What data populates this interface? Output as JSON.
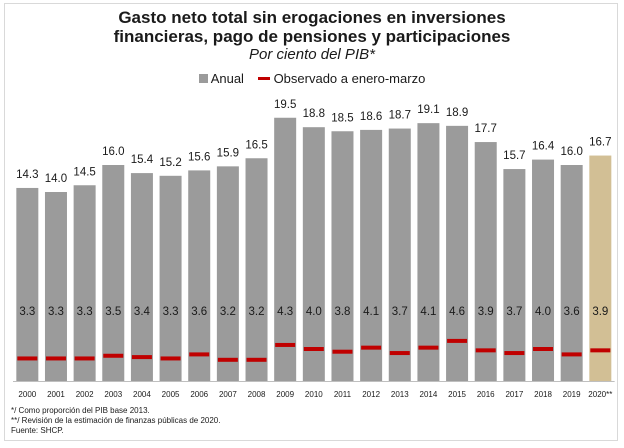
{
  "chart_data": {
    "type": "bar",
    "title": "Gasto neto total sin erogaciones en inversiones financieras, pago de pensiones y participaciones",
    "title_lines": [
      "Gasto neto total sin erogaciones en inversiones",
      "financieras, pago de pensiones y participaciones"
    ],
    "subtitle": "Por ciento del PIB*",
    "legend_position": "top",
    "grid": false,
    "ylim": [
      0,
      22
    ],
    "categories": [
      "2000",
      "2001",
      "2002",
      "2003",
      "2004",
      "2005",
      "2006",
      "2007",
      "2008",
      "2009",
      "2010",
      "2011",
      "2012",
      "2013",
      "2014",
      "2015",
      "2016",
      "2017",
      "2018",
      "2019",
      "2020**"
    ],
    "series": [
      {
        "name": "Anual",
        "type": "bar",
        "color": "#9b9b9b",
        "highlight_color": "#d2bf95",
        "highlight_index": 20,
        "values": [
          14.3,
          14.0,
          14.5,
          16.0,
          15.4,
          15.2,
          15.6,
          15.9,
          16.5,
          19.5,
          18.8,
          18.5,
          18.6,
          18.7,
          19.1,
          18.9,
          17.7,
          15.7,
          16.4,
          16.0,
          16.7
        ]
      },
      {
        "name": "Observado a enero-marzo",
        "type": "marker",
        "color": "#c00000",
        "values": [
          3.3,
          3.3,
          3.3,
          3.5,
          3.4,
          3.3,
          3.6,
          3.2,
          3.2,
          4.3,
          4.0,
          3.8,
          4.1,
          3.7,
          4.1,
          4.6,
          3.9,
          3.7,
          4.0,
          3.6,
          3.9
        ]
      }
    ],
    "value_labels": {
      "annual": [
        "14.3",
        "14.0",
        "14.5",
        "16.0",
        "15.4",
        "15.2",
        "15.6",
        "15.9",
        "16.5",
        "19.5",
        "18.8",
        "18.5",
        "18.6",
        "18.7",
        "19.1",
        "18.9",
        "17.7",
        "15.7",
        "16.4",
        "16.0",
        "16.7"
      ],
      "quarter": [
        "3.3",
        "3.3",
        "3.3",
        "3.5",
        "3.4",
        "3.3",
        "3.6",
        "3.2",
        "3.2",
        "4.3",
        "4.0",
        "3.8",
        "4.1",
        "3.7",
        "4.1",
        "4.6",
        "3.9",
        "3.7",
        "4.0",
        "3.6",
        "3.9"
      ]
    }
  },
  "legend": {
    "anual": "Anual",
    "observado": "Observado a enero-marzo"
  },
  "notes": [
    "*/ Como proporción del PIB base 2013.",
    "**/ Revisión de la estimación de finanzas públicas de 2020.",
    "Fuente: SHCP."
  ]
}
